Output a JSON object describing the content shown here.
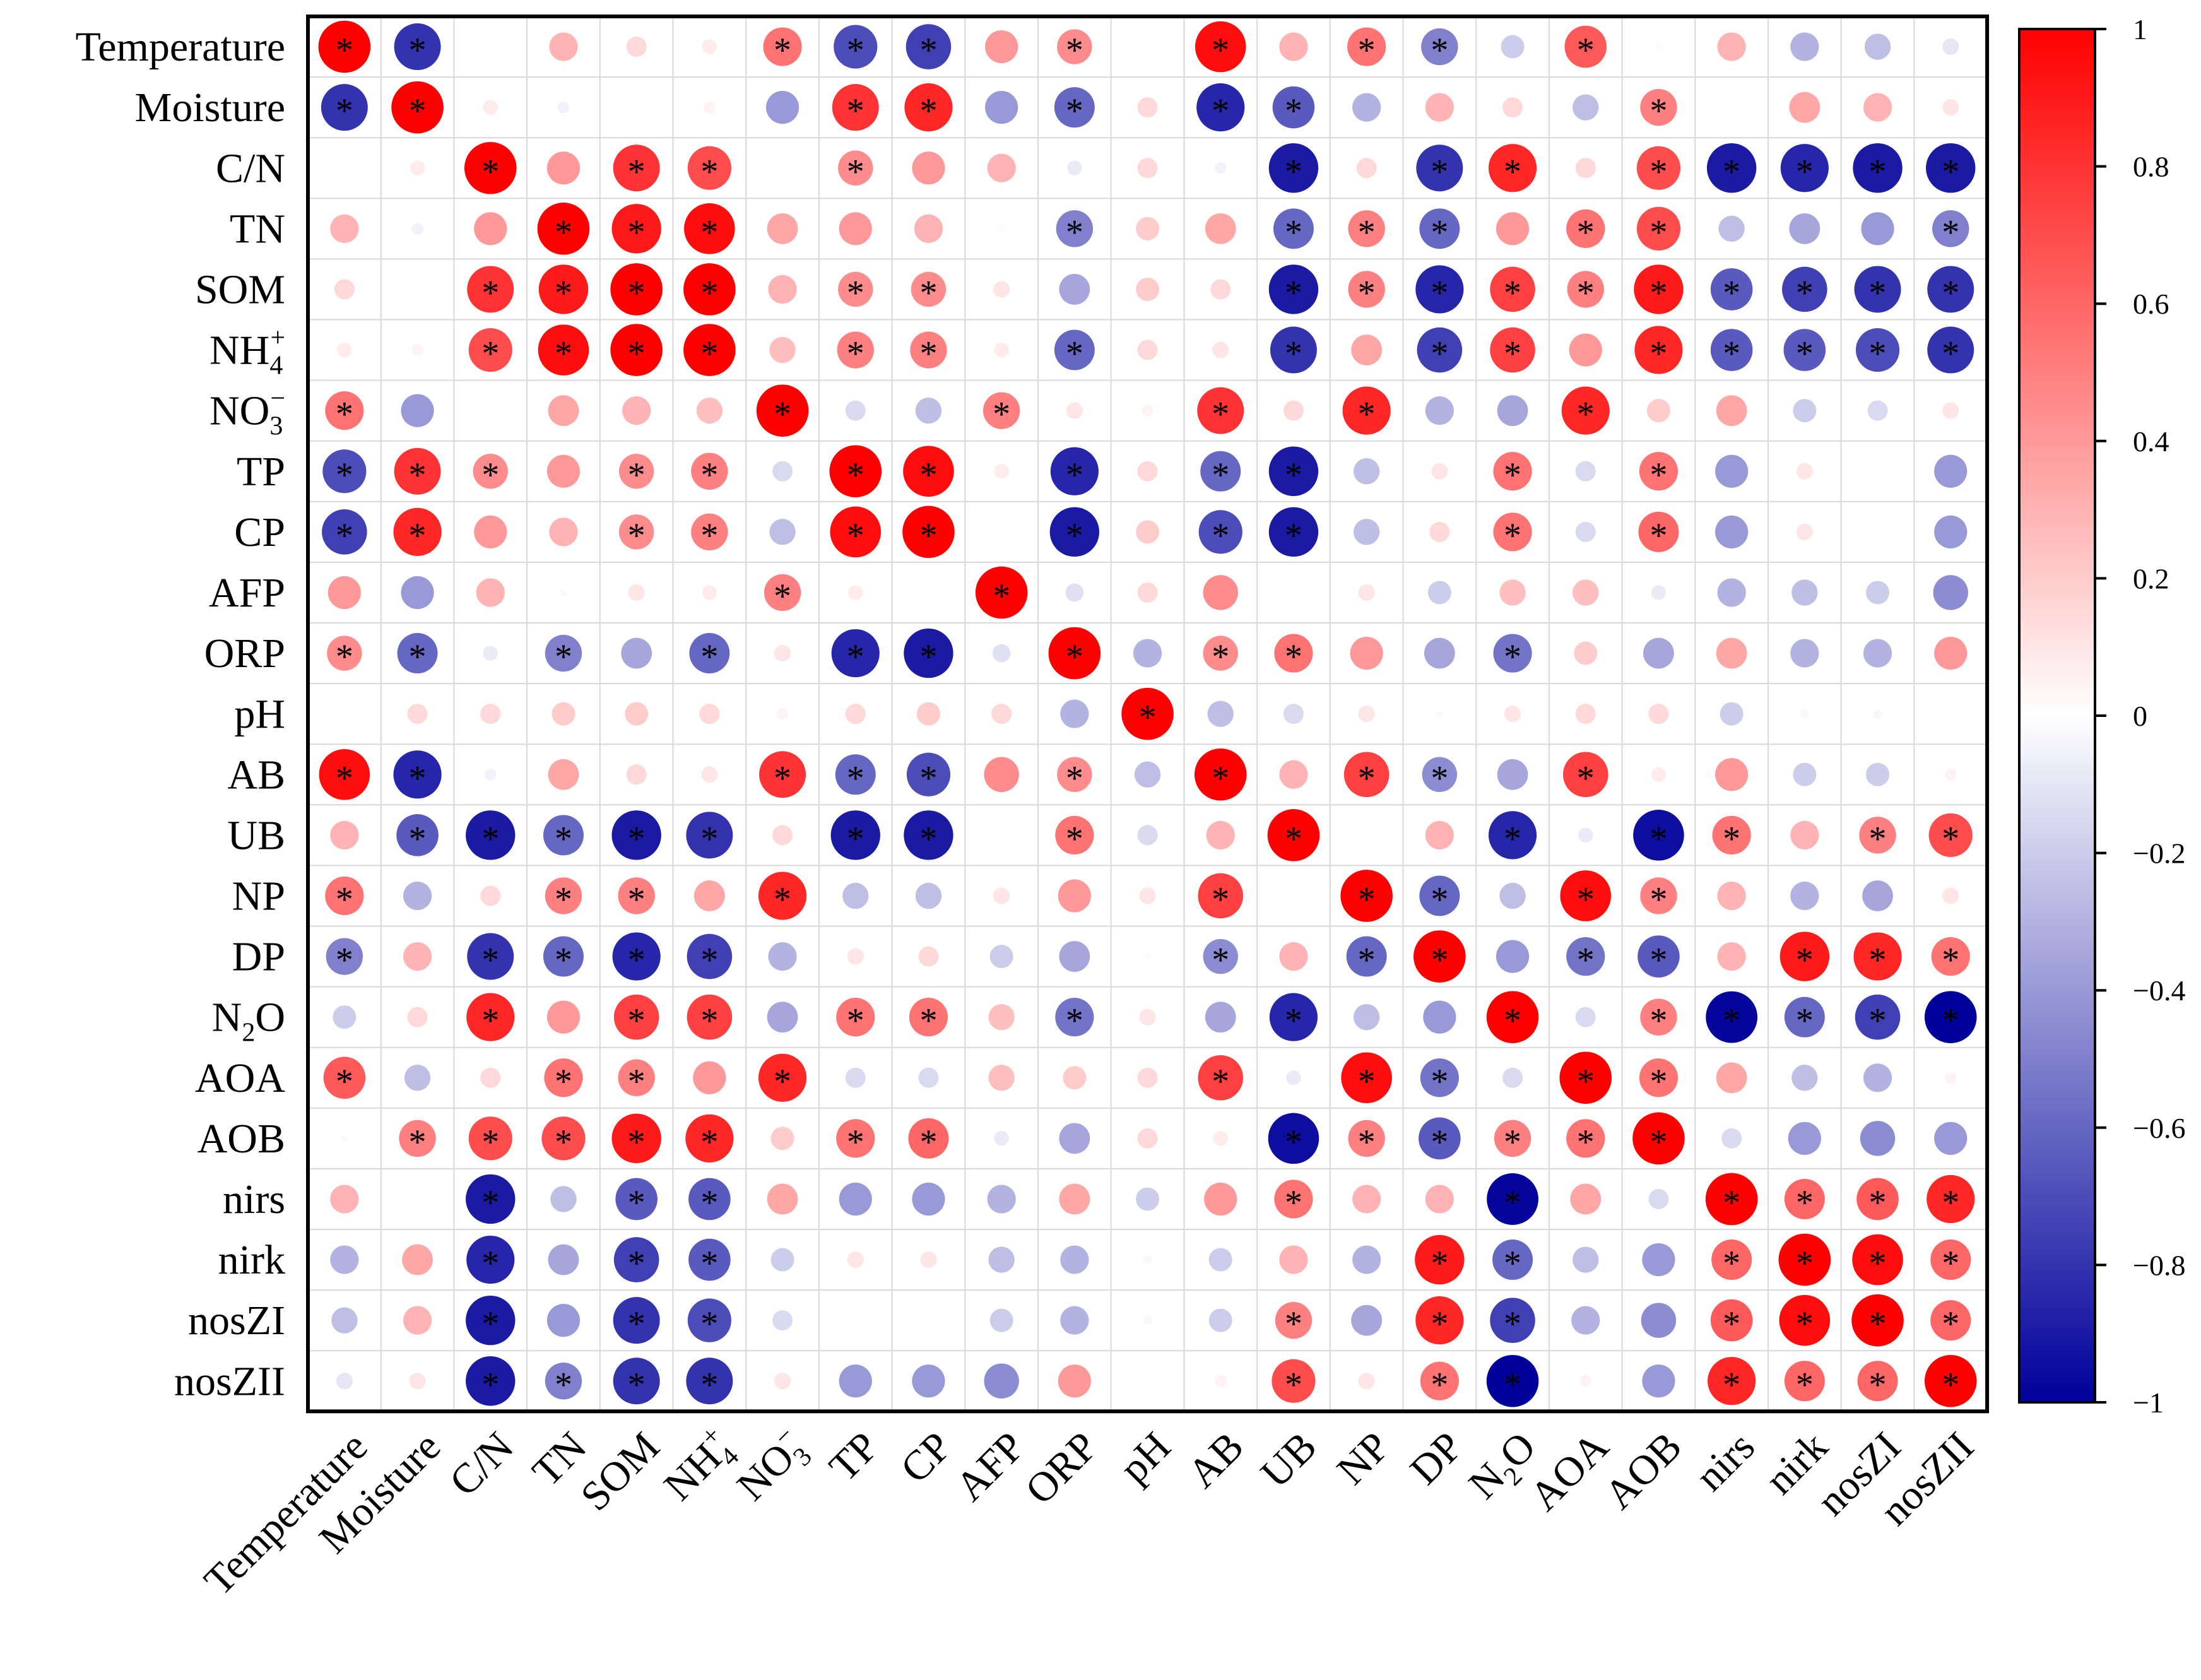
{
  "chart_data": {
    "type": "heatmap",
    "subtype": "correlation-circle-matrix",
    "variables": [
      "Temperature",
      "Moisture",
      "C/N",
      "TN",
      "SOM",
      "NH4+",
      "NO3-",
      "TP",
      "CP",
      "AFP",
      "ORP",
      "pH",
      "AB",
      "UB",
      "NP",
      "DP",
      "N2O",
      "AOA",
      "AOB",
      "nirs",
      "nirk",
      "nosZI",
      "nosZII"
    ],
    "variable_labels": [
      {
        "base": "Temperature"
      },
      {
        "base": "Moisture"
      },
      {
        "base": "C/N"
      },
      {
        "base": "TN"
      },
      {
        "base": "SOM"
      },
      {
        "base": "NH",
        "sub": "4",
        "sup": "+"
      },
      {
        "base": "NO",
        "sub": "3",
        "sup": "−"
      },
      {
        "base": "TP"
      },
      {
        "base": "CP"
      },
      {
        "base": "AFP"
      },
      {
        "base": "ORP"
      },
      {
        "base": "pH"
      },
      {
        "base": "AB"
      },
      {
        "base": "UB"
      },
      {
        "base": "NP"
      },
      {
        "base": "DP"
      },
      {
        "base": "N",
        "sub": "2",
        "tail": "O"
      },
      {
        "base": "AOA"
      },
      {
        "base": "AOB"
      },
      {
        "base": "nirs"
      },
      {
        "base": "nirk"
      },
      {
        "base": "nosZI"
      },
      {
        "base": "nosZII"
      }
    ],
    "significance_marker": "*",
    "values": [
      [
        1.0,
        -0.8,
        0.0,
        0.3,
        0.15,
        0.08,
        0.55,
        -0.7,
        -0.75,
        0.4,
        0.45,
        0.0,
        0.95,
        0.3,
        0.55,
        -0.5,
        -0.2,
        0.65,
        0.02,
        0.3,
        -0.3,
        -0.25,
        -0.1
      ],
      [
        -0.8,
        1.0,
        0.08,
        -0.05,
        0.0,
        0.05,
        -0.4,
        0.8,
        0.85,
        -0.4,
        -0.6,
        0.15,
        -0.85,
        -0.65,
        -0.3,
        0.3,
        0.15,
        -0.25,
        0.5,
        0.0,
        0.35,
        0.3,
        0.1
      ],
      [
        0.0,
        0.08,
        1.0,
        0.4,
        0.8,
        0.7,
        0.0,
        0.45,
        0.4,
        0.3,
        -0.08,
        0.15,
        -0.05,
        -0.9,
        0.15,
        -0.8,
        0.85,
        0.15,
        0.7,
        -0.9,
        -0.85,
        -0.9,
        -0.9
      ],
      [
        0.3,
        -0.05,
        0.4,
        1.0,
        0.9,
        0.95,
        0.35,
        0.4,
        0.3,
        0.02,
        -0.5,
        0.2,
        0.35,
        -0.6,
        0.5,
        -0.6,
        0.4,
        0.55,
        0.7,
        -0.25,
        -0.35,
        -0.4,
        -0.5
      ],
      [
        0.15,
        0.0,
        0.8,
        0.9,
        1.0,
        1.0,
        0.3,
        0.45,
        0.45,
        0.1,
        -0.35,
        0.2,
        0.15,
        -0.9,
        0.5,
        -0.85,
        0.75,
        0.5,
        0.9,
        -0.65,
        -0.75,
        -0.8,
        -0.8
      ],
      [
        0.08,
        0.05,
        0.7,
        0.95,
        1.0,
        1.0,
        0.25,
        0.5,
        0.5,
        0.08,
        -0.6,
        0.15,
        0.1,
        -0.8,
        0.35,
        -0.75,
        0.75,
        0.4,
        0.85,
        -0.65,
        -0.65,
        -0.7,
        -0.8
      ],
      [
        0.55,
        -0.4,
        0.0,
        0.35,
        0.3,
        0.25,
        1.0,
        -0.15,
        -0.25,
        0.5,
        0.1,
        0.05,
        0.8,
        0.15,
        0.85,
        -0.3,
        -0.35,
        0.85,
        0.2,
        0.35,
        -0.2,
        -0.15,
        0.1
      ],
      [
        -0.7,
        0.8,
        0.45,
        0.4,
        0.45,
        0.5,
        -0.15,
        1.0,
        0.95,
        0.08,
        -0.85,
        0.15,
        -0.6,
        -0.9,
        -0.25,
        0.1,
        0.55,
        -0.15,
        0.55,
        -0.4,
        0.1,
        0.0,
        -0.4
      ],
      [
        -0.75,
        0.85,
        0.4,
        0.3,
        0.45,
        0.5,
        -0.25,
        0.95,
        1.0,
        0.0,
        -0.9,
        0.2,
        -0.7,
        -0.9,
        -0.25,
        0.15,
        0.55,
        -0.15,
        0.6,
        -0.4,
        0.1,
        0.0,
        -0.4
      ],
      [
        0.4,
        -0.4,
        0.3,
        0.02,
        0.1,
        0.08,
        0.5,
        0.08,
        0.0,
        1.0,
        -0.12,
        0.15,
        0.45,
        0.0,
        0.1,
        -0.2,
        0.25,
        0.25,
        -0.08,
        -0.3,
        -0.25,
        -0.2,
        -0.45
      ],
      [
        0.45,
        -0.6,
        -0.08,
        -0.5,
        -0.35,
        -0.6,
        0.1,
        -0.85,
        -0.9,
        -0.12,
        1.0,
        -0.3,
        0.45,
        0.55,
        0.4,
        -0.35,
        -0.55,
        0.2,
        -0.35,
        0.35,
        -0.3,
        -0.3,
        0.4
      ],
      [
        0.0,
        0.15,
        0.15,
        0.2,
        0.2,
        0.15,
        0.05,
        0.15,
        0.2,
        0.15,
        -0.3,
        1.0,
        -0.25,
        -0.15,
        0.1,
        0.02,
        0.1,
        0.15,
        0.15,
        -0.2,
        -0.03,
        -0.03,
        0.0
      ],
      [
        0.95,
        -0.85,
        -0.05,
        0.35,
        0.15,
        0.1,
        0.8,
        -0.6,
        -0.7,
        0.45,
        0.45,
        -0.25,
        1.0,
        0.3,
        0.75,
        -0.45,
        -0.35,
        0.75,
        0.08,
        0.4,
        -0.2,
        -0.2,
        0.05
      ],
      [
        0.3,
        -0.65,
        -0.9,
        -0.6,
        -0.9,
        -0.8,
        0.15,
        -0.9,
        -0.9,
        0.0,
        0.55,
        -0.15,
        0.3,
        1.0,
        0.0,
        0.3,
        -0.85,
        -0.08,
        -0.95,
        0.55,
        0.3,
        0.5,
        0.7
      ],
      [
        0.55,
        -0.3,
        0.15,
        0.5,
        0.5,
        0.35,
        0.85,
        -0.25,
        -0.25,
        0.1,
        0.4,
        0.1,
        0.75,
        0.0,
        1.0,
        -0.6,
        -0.25,
        0.95,
        0.5,
        0.3,
        -0.3,
        -0.35,
        0.1
      ],
      [
        -0.5,
        0.3,
        -0.8,
        -0.6,
        -0.85,
        -0.75,
        -0.3,
        0.1,
        0.15,
        -0.2,
        -0.35,
        0.02,
        -0.45,
        0.3,
        -0.6,
        1.0,
        -0.4,
        -0.55,
        -0.65,
        0.3,
        0.9,
        0.85,
        0.55
      ],
      [
        -0.2,
        0.15,
        0.85,
        0.4,
        0.75,
        0.75,
        -0.35,
        0.55,
        0.55,
        0.25,
        -0.55,
        0.1,
        -0.35,
        -0.85,
        -0.25,
        -0.4,
        1.0,
        -0.15,
        0.5,
        -0.98,
        -0.6,
        -0.75,
        -1.0
      ],
      [
        0.65,
        -0.25,
        0.15,
        0.55,
        0.5,
        0.4,
        0.85,
        -0.15,
        -0.15,
        0.25,
        0.2,
        0.15,
        0.75,
        -0.08,
        0.95,
        -0.55,
        -0.15,
        1.0,
        0.55,
        0.35,
        -0.25,
        -0.3,
        0.05
      ],
      [
        0.02,
        0.5,
        0.7,
        0.7,
        0.9,
        0.85,
        0.2,
        0.55,
        0.6,
        -0.08,
        -0.35,
        0.15,
        0.08,
        -0.95,
        0.5,
        -0.65,
        0.5,
        0.55,
        1.0,
        -0.15,
        -0.4,
        -0.45,
        -0.4
      ],
      [
        0.3,
        0.0,
        -0.9,
        -0.25,
        -0.65,
        -0.65,
        0.35,
        -0.4,
        -0.4,
        -0.3,
        0.35,
        -0.2,
        0.4,
        0.55,
        0.3,
        0.3,
        -0.98,
        0.35,
        -0.15,
        1.0,
        0.6,
        0.65,
        0.85
      ],
      [
        -0.3,
        0.35,
        -0.85,
        -0.35,
        -0.75,
        -0.65,
        -0.2,
        0.1,
        0.1,
        -0.25,
        -0.3,
        -0.03,
        -0.2,
        0.3,
        -0.3,
        0.9,
        -0.6,
        -0.25,
        -0.4,
        0.6,
        1.0,
        0.95,
        0.6
      ],
      [
        -0.25,
        0.3,
        -0.9,
        -0.4,
        -0.8,
        -0.7,
        -0.15,
        0.0,
        0.0,
        -0.2,
        -0.3,
        -0.03,
        -0.2,
        0.5,
        -0.35,
        0.85,
        -0.75,
        -0.3,
        -0.45,
        0.65,
        0.95,
        1.0,
        0.6
      ],
      [
        -0.1,
        0.1,
        -0.9,
        -0.5,
        -0.8,
        -0.8,
        0.1,
        -0.4,
        -0.4,
        -0.45,
        0.4,
        0.0,
        0.05,
        0.7,
        0.1,
        0.55,
        -1.0,
        0.05,
        -0.4,
        0.85,
        0.6,
        0.6,
        1.0
      ]
    ],
    "significant": [
      [
        1,
        1,
        0,
        0,
        0,
        0,
        1,
        1,
        1,
        0,
        1,
        0,
        1,
        0,
        1,
        1,
        0,
        1,
        0,
        0,
        0,
        0,
        0
      ],
      [
        1,
        1,
        0,
        0,
        0,
        0,
        0,
        1,
        1,
        0,
        1,
        0,
        1,
        1,
        0,
        0,
        0,
        0,
        1,
        0,
        0,
        0,
        0
      ],
      [
        0,
        0,
        1,
        0,
        1,
        1,
        0,
        1,
        0,
        0,
        0,
        0,
        0,
        1,
        0,
        1,
        1,
        0,
        1,
        1,
        1,
        1,
        1
      ],
      [
        0,
        0,
        0,
        1,
        1,
        1,
        0,
        0,
        0,
        0,
        1,
        0,
        0,
        1,
        1,
        1,
        0,
        1,
        1,
        0,
        0,
        0,
        1
      ],
      [
        0,
        0,
        1,
        1,
        1,
        1,
        0,
        1,
        1,
        0,
        0,
        0,
        0,
        1,
        1,
        1,
        1,
        1,
        1,
        1,
        1,
        1,
        1
      ],
      [
        0,
        0,
        1,
        1,
        1,
        1,
        0,
        1,
        1,
        0,
        1,
        0,
        0,
        1,
        0,
        1,
        1,
        0,
        1,
        1,
        1,
        1,
        1
      ],
      [
        1,
        0,
        0,
        0,
        0,
        0,
        1,
        0,
        0,
        1,
        0,
        0,
        1,
        0,
        1,
        0,
        0,
        1,
        0,
        0,
        0,
        0,
        0
      ],
      [
        1,
        1,
        1,
        0,
        1,
        1,
        0,
        1,
        1,
        0,
        1,
        0,
        1,
        1,
        0,
        0,
        1,
        0,
        1,
        0,
        0,
        0,
        0
      ],
      [
        1,
        1,
        0,
        0,
        1,
        1,
        0,
        1,
        1,
        0,
        1,
        0,
        1,
        1,
        0,
        0,
        1,
        0,
        1,
        0,
        0,
        0,
        0
      ],
      [
        0,
        0,
        0,
        0,
        0,
        0,
        1,
        0,
        0,
        1,
        0,
        0,
        0,
        0,
        0,
        0,
        0,
        0,
        0,
        0,
        0,
        0,
        0
      ],
      [
        1,
        1,
        0,
        1,
        0,
        1,
        0,
        1,
        1,
        0,
        1,
        0,
        1,
        1,
        0,
        0,
        1,
        0,
        0,
        0,
        0,
        0,
        0
      ],
      [
        0,
        0,
        0,
        0,
        0,
        0,
        0,
        0,
        0,
        0,
        0,
        1,
        0,
        0,
        0,
        0,
        0,
        0,
        0,
        0,
        0,
        0,
        0
      ],
      [
        1,
        1,
        0,
        0,
        0,
        0,
        1,
        1,
        1,
        0,
        1,
        0,
        1,
        0,
        1,
        1,
        0,
        1,
        0,
        0,
        0,
        0,
        0
      ],
      [
        0,
        1,
        1,
        1,
        1,
        1,
        0,
        1,
        1,
        0,
        1,
        0,
        0,
        1,
        0,
        0,
        1,
        0,
        1,
        1,
        0,
        1,
        1
      ],
      [
        1,
        0,
        0,
        1,
        1,
        0,
        1,
        0,
        0,
        0,
        0,
        0,
        1,
        0,
        1,
        1,
        0,
        1,
        1,
        0,
        0,
        0,
        0
      ],
      [
        1,
        0,
        1,
        1,
        1,
        1,
        0,
        0,
        0,
        0,
        0,
        0,
        1,
        0,
        1,
        1,
        0,
        1,
        1,
        0,
        1,
        1,
        1
      ],
      [
        0,
        0,
        1,
        0,
        1,
        1,
        0,
        1,
        1,
        0,
        1,
        0,
        0,
        1,
        0,
        0,
        1,
        0,
        1,
        1,
        1,
        1,
        1
      ],
      [
        1,
        0,
        0,
        1,
        1,
        0,
        1,
        0,
        0,
        0,
        0,
        0,
        1,
        0,
        1,
        1,
        0,
        1,
        1,
        0,
        0,
        0,
        0
      ],
      [
        0,
        1,
        1,
        1,
        1,
        1,
        0,
        1,
        1,
        0,
        0,
        0,
        0,
        1,
        1,
        1,
        1,
        1,
        1,
        0,
        0,
        0,
        0
      ],
      [
        0,
        0,
        1,
        0,
        1,
        1,
        0,
        0,
        0,
        0,
        0,
        0,
        0,
        1,
        0,
        0,
        1,
        0,
        0,
        1,
        1,
        1,
        1
      ],
      [
        0,
        0,
        1,
        0,
        1,
        1,
        0,
        0,
        0,
        0,
        0,
        0,
        0,
        0,
        0,
        1,
        1,
        0,
        0,
        1,
        1,
        1,
        1
      ],
      [
        0,
        0,
        1,
        0,
        1,
        1,
        0,
        0,
        0,
        0,
        0,
        0,
        0,
        1,
        0,
        1,
        1,
        0,
        0,
        1,
        1,
        1,
        1
      ],
      [
        0,
        0,
        1,
        1,
        1,
        1,
        0,
        0,
        0,
        0,
        0,
        0,
        0,
        1,
        0,
        1,
        1,
        0,
        0,
        1,
        1,
        1,
        1
      ]
    ],
    "colorbar": {
      "range": [
        -1,
        1
      ],
      "ticks": [
        1,
        0.8,
        0.6,
        0.4,
        0.2,
        0,
        -0.2,
        -0.4,
        -0.6,
        -0.8,
        -1
      ],
      "tick_labels": [
        "1",
        "0.8",
        "0.6",
        "0.4",
        "0.2",
        "0",
        "−0.2",
        "−0.4",
        "−0.6",
        "−0.8",
        "−1"
      ],
      "colors": {
        "negative": "#00009b",
        "neutral": "#ffffff",
        "positive": "#ff0000"
      }
    },
    "grid": true,
    "legend": "right"
  }
}
